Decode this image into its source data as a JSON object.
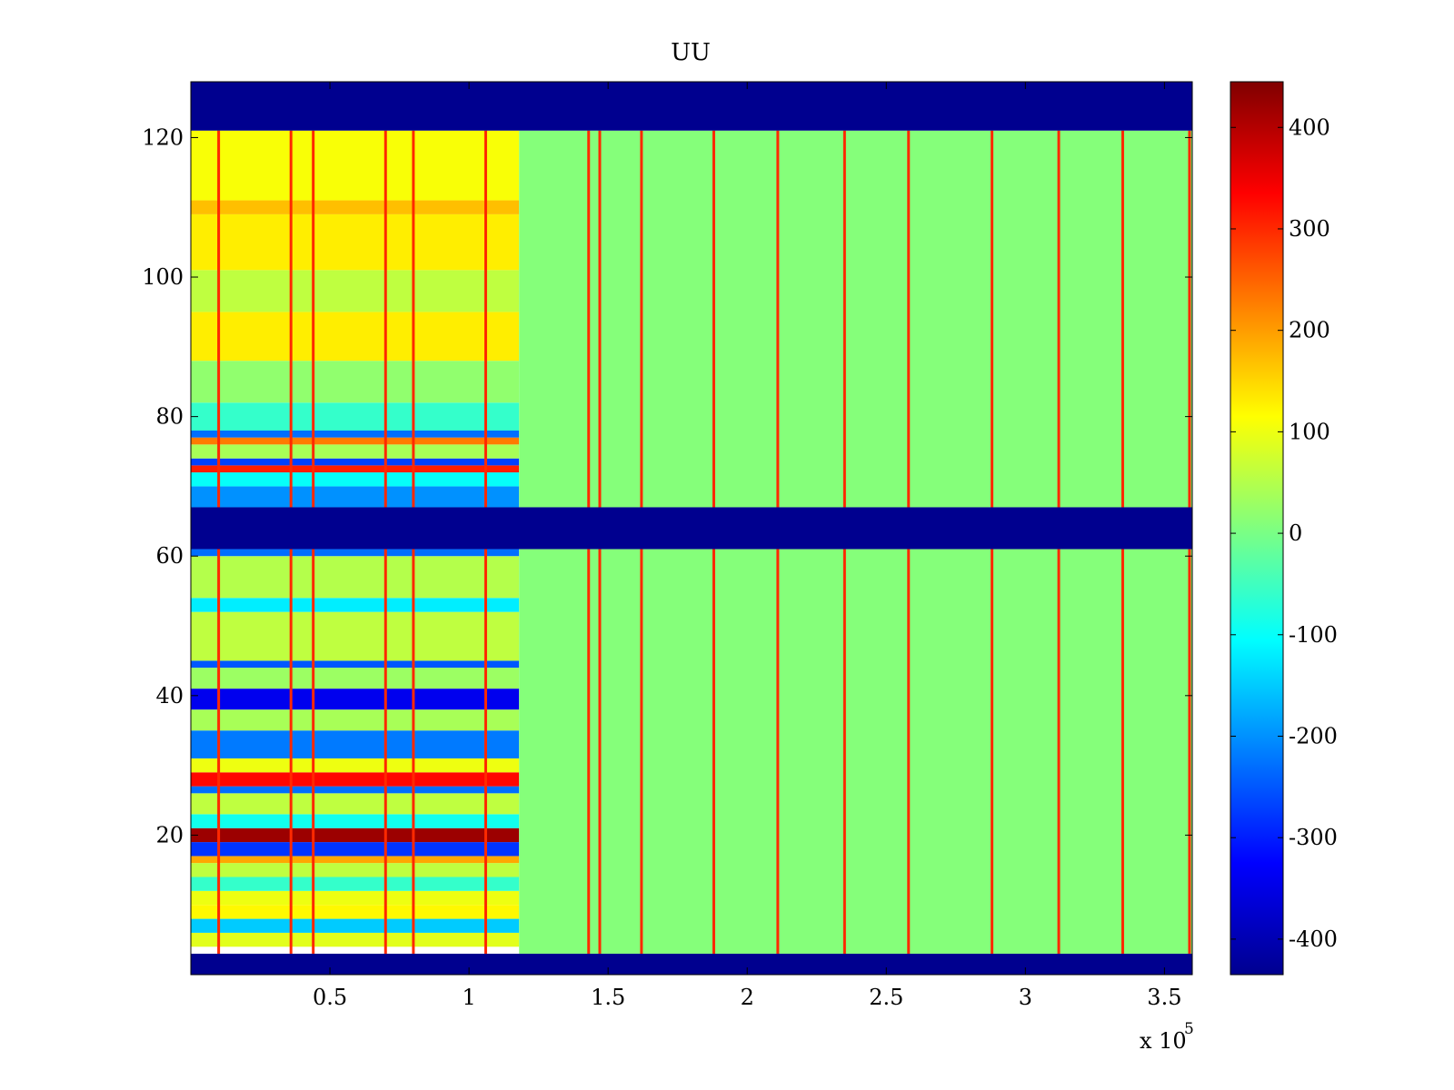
{
  "chart_data": {
    "type": "heatmap",
    "title": "UU",
    "xlabel": "",
    "ylabel": "",
    "x_exponent_label": "x 10",
    "x_exponent_power": "5",
    "xlim": [
      0,
      3.6
    ],
    "ylim": [
      0,
      128
    ],
    "x_ticks": [
      0.5,
      1,
      1.5,
      2,
      2.5,
      3,
      3.5
    ],
    "x_tick_labels": [
      "0.5",
      "1",
      "1.5",
      "2",
      "2.5",
      "3",
      "3.5"
    ],
    "y_ticks": [
      20,
      40,
      60,
      80,
      100,
      120
    ],
    "y_tick_labels": [
      "20",
      "40",
      "60",
      "80",
      "100",
      "120"
    ],
    "colormap": "jet",
    "clim": [
      -435,
      445
    ],
    "colorbar_ticks": [
      400,
      300,
      200,
      100,
      0,
      -100,
      -200,
      -300,
      -400
    ],
    "colorbar_tick_labels": [
      "400",
      "300",
      "200",
      "100",
      "0",
      "-100",
      "-200",
      "-300",
      "-400"
    ],
    "masked_row_ranges": [
      [
        0,
        3
      ],
      [
        61,
        67
      ],
      [
        121,
        128
      ]
    ],
    "regime_change_x": 1.18,
    "early_regime_row_values": [
      {
        "rows": [
          4,
          6
        ],
        "value": 90
      },
      {
        "rows": [
          6,
          8
        ],
        "value": -150
      },
      {
        "rows": [
          8,
          10
        ],
        "value": 120
      },
      {
        "rows": [
          10,
          12
        ],
        "value": 100
      },
      {
        "rows": [
          12,
          14
        ],
        "value": -60
      },
      {
        "rows": [
          14,
          16
        ],
        "value": 60
      },
      {
        "rows": [
          16,
          17
        ],
        "value": 190
      },
      {
        "rows": [
          17,
          19
        ],
        "value": -280
      },
      {
        "rows": [
          19,
          21
        ],
        "value": 420
      },
      {
        "rows": [
          21,
          23
        ],
        "value": -90
      },
      {
        "rows": [
          23,
          26
        ],
        "value": 60
      },
      {
        "rows": [
          26,
          27
        ],
        "value": -230
      },
      {
        "rows": [
          27,
          29
        ],
        "value": 330
      },
      {
        "rows": [
          29,
          31
        ],
        "value": 100
      },
      {
        "rows": [
          31,
          35
        ],
        "value": -220
      },
      {
        "rows": [
          35,
          38
        ],
        "value": 40
      },
      {
        "rows": [
          38,
          41
        ],
        "value": -340
      },
      {
        "rows": [
          41,
          44
        ],
        "value": 30
      },
      {
        "rows": [
          44,
          45
        ],
        "value": -250
      },
      {
        "rows": [
          45,
          52
        ],
        "value": 60
      },
      {
        "rows": [
          52,
          54
        ],
        "value": -120
      },
      {
        "rows": [
          54,
          60
        ],
        "value": 50
      },
      {
        "rows": [
          60,
          61
        ],
        "value": -230
      },
      {
        "rows": [
          67,
          70
        ],
        "value": -200
      },
      {
        "rows": [
          70,
          72
        ],
        "value": -100
      },
      {
        "rows": [
          72,
          73
        ],
        "value": 310
      },
      {
        "rows": [
          73,
          74
        ],
        "value": -270
      },
      {
        "rows": [
          74,
          76
        ],
        "value": 40
      },
      {
        "rows": [
          76,
          77
        ],
        "value": 230
      },
      {
        "rows": [
          77,
          78
        ],
        "value": -230
      },
      {
        "rows": [
          78,
          82
        ],
        "value": -60
      },
      {
        "rows": [
          82,
          88
        ],
        "value": 20
      },
      {
        "rows": [
          88,
          95
        ],
        "value": 130
      },
      {
        "rows": [
          95,
          101
        ],
        "value": 60
      },
      {
        "rows": [
          101,
          109
        ],
        "value": 130
      },
      {
        "rows": [
          109,
          111
        ],
        "value": 170
      },
      {
        "rows": [
          111,
          121
        ],
        "value": 110
      }
    ],
    "late_regime_base_value": 10,
    "spike_columns_x": [
      0.1,
      0.36,
      0.44,
      0.7,
      0.8,
      1.06,
      1.43,
      1.47,
      1.62,
      1.88,
      2.11,
      2.35,
      2.58,
      2.88,
      3.12,
      3.35,
      3.59
    ],
    "spike_column_value": 300
  }
}
